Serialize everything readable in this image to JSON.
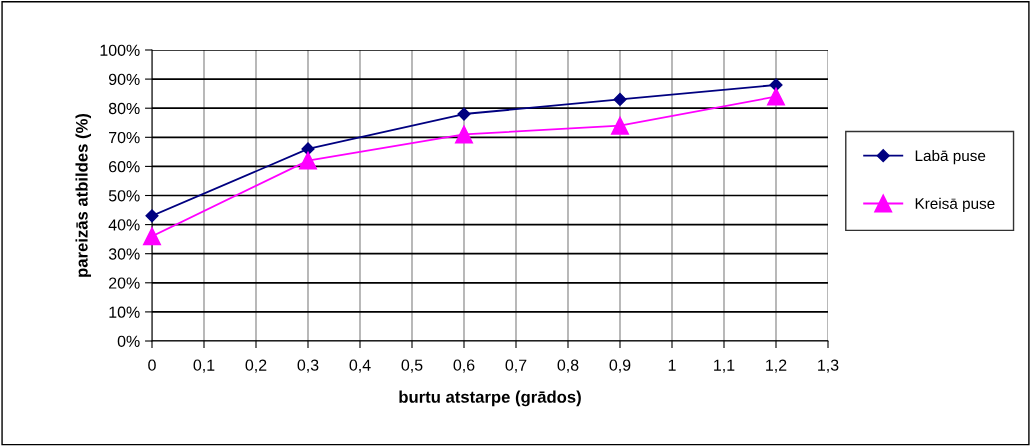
{
  "chart_data": {
    "type": "line",
    "xlabel": "burtu atstarpe (grādos)",
    "ylabel": "pareizās atbildes (%)",
    "x": [
      0,
      0.3,
      0.6,
      0.9,
      1.2
    ],
    "series": [
      {
        "name": "Labā puse",
        "color": "#000080",
        "values": [
          43,
          66,
          78,
          83,
          88
        ],
        "marker": "diamond"
      },
      {
        "name": "Kreisā puse",
        "color": "#ff00ff",
        "values": [
          36,
          62,
          71,
          74,
          84
        ],
        "marker": "triangle"
      }
    ],
    "xlim": [
      0,
      1.3
    ],
    "xticks": [
      0,
      {
        "value": 0.1,
        "label": "0,1"
      },
      {
        "value": 0.2,
        "label": "0,2"
      },
      {
        "value": 0.3,
        "label": "0,3"
      },
      {
        "value": 0.4,
        "label": "0,4"
      },
      {
        "value": 0.5,
        "label": "0,5"
      },
      {
        "value": 0.6,
        "label": "0,6"
      },
      {
        "value": 0.7,
        "label": "0,7"
      },
      {
        "value": 0.8,
        "label": "0,8"
      },
      {
        "value": 0.9,
        "label": "0,9"
      },
      1,
      {
        "value": 1.1,
        "label": "1,1"
      },
      {
        "value": 1.2,
        "label": "1,2"
      },
      {
        "value": 1.3,
        "label": "1,3"
      }
    ],
    "ylim": [
      0,
      100
    ],
    "yticks": [
      {
        "value": 0,
        "label": "0%"
      },
      {
        "value": 10,
        "label": "10%"
      },
      {
        "value": 20,
        "label": "20%"
      },
      {
        "value": 30,
        "label": "30%"
      },
      {
        "value": 40,
        "label": "40%"
      },
      {
        "value": 50,
        "label": "50%"
      },
      {
        "value": 60,
        "label": "60%"
      },
      {
        "value": 70,
        "label": "70%"
      },
      {
        "value": 80,
        "label": "80%"
      },
      {
        "value": 90,
        "label": "90%"
      },
      {
        "value": 100,
        "label": "100%"
      }
    ],
    "grid": true,
    "legend": "right",
    "line_style": "solid"
  }
}
